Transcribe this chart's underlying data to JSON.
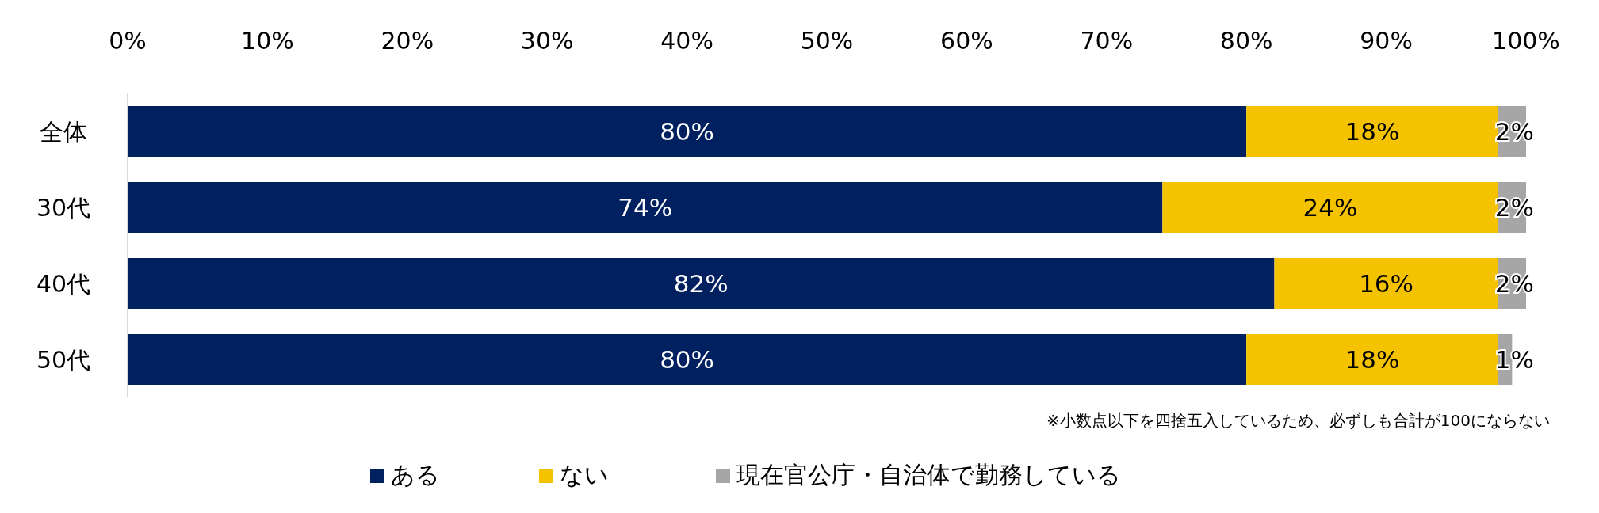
{
  "chart_data": {
    "type": "bar",
    "orientation": "horizontal",
    "stacked": true,
    "legend": "bottom",
    "grid": false,
    "categories": [
      "全体",
      "30代",
      "40代",
      "50代"
    ],
    "series": [
      {
        "name": "ある",
        "color": "#002060",
        "values": [
          80,
          74,
          82,
          80
        ],
        "value_labels": [
          "80%",
          "74%",
          "82%",
          "80%"
        ]
      },
      {
        "name": "ない",
        "color": "#f5c200",
        "values": [
          18,
          24,
          16,
          18
        ],
        "value_labels": [
          "18%",
          "24%",
          "16%",
          "18%"
        ]
      },
      {
        "name": "現在官公庁・自治体で勤務している",
        "color": "#a6a6a6",
        "values": [
          2,
          2,
          2,
          1
        ],
        "value_labels": [
          "2%",
          "2%",
          "2%",
          "1%"
        ]
      }
    ],
    "xlim": [
      0,
      100
    ],
    "xticks": [
      {
        "value": 0,
        "label": "0%"
      },
      {
        "value": 10,
        "label": "10%"
      },
      {
        "value": 20,
        "label": "20%"
      },
      {
        "value": 30,
        "label": "30%"
      },
      {
        "value": 40,
        "label": "40%"
      },
      {
        "value": 50,
        "label": "50%"
      },
      {
        "value": 60,
        "label": "60%"
      },
      {
        "value": 70,
        "label": "70%"
      },
      {
        "value": 80,
        "label": "80%"
      },
      {
        "value": 90,
        "label": "90%"
      },
      {
        "value": 100,
        "label": "100%"
      }
    ],
    "annotations": [
      "※小数点以下を四捨五入しているため、必ずしも合計が100にならない"
    ]
  }
}
